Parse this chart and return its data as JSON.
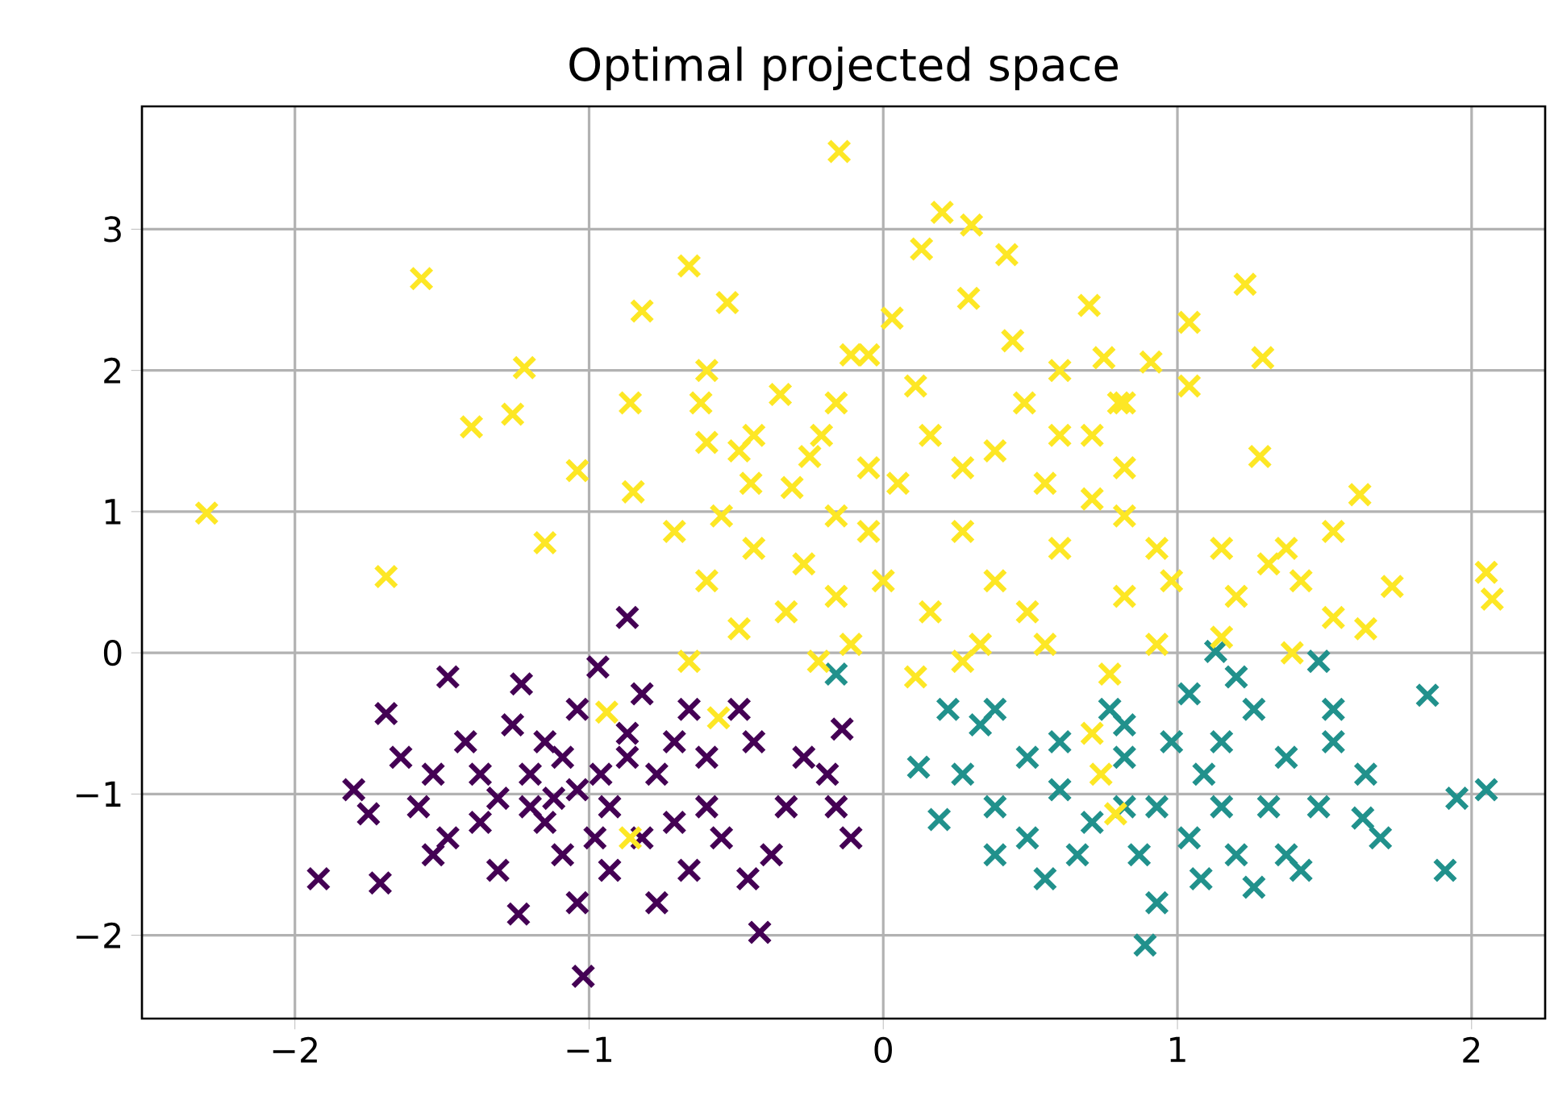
{
  "chart_data": {
    "type": "scatter",
    "title": "Optimal projected space",
    "marker": "cross",
    "grid": true,
    "xlim": [
      -2.52,
      2.25
    ],
    "ylim": [
      -2.59,
      3.87
    ],
    "xticks": [
      {
        "value": -2,
        "label": "−2"
      },
      {
        "value": -1,
        "label": "−1"
      },
      0,
      1,
      2
    ],
    "yticks": [
      {
        "value": -2,
        "label": "−2"
      },
      {
        "value": -1,
        "label": "−1"
      },
      0,
      1,
      2,
      3
    ],
    "series": [
      {
        "color": "#440154",
        "x": [
          -1.02,
          -0.42,
          -1.92,
          -1.71,
          -1.69,
          -0.87,
          -1.48,
          -1.23,
          -0.97,
          -0.11,
          -0.14,
          -1.24,
          -0.46,
          -1.48,
          -1.8,
          -1.37,
          -1.2,
          -1.09,
          -0.93,
          -0.77,
          -0.6,
          -0.44,
          -0.27,
          -0.33,
          -0.55,
          -0.71,
          -0.93,
          -1.09,
          -1.31,
          -1.58,
          -1.64,
          -1.42,
          -1.26,
          -1.04,
          -0.82,
          -0.66,
          -0.49,
          -1.2,
          -1.04,
          -0.87,
          -1.37,
          -1.15,
          -0.98,
          -0.82,
          -0.66,
          -0.77,
          -1.04,
          -1.53,
          -1.75,
          -1.31,
          -1.12,
          -0.96,
          -0.71,
          -0.19,
          -0.16,
          -0.38,
          -0.6,
          -1.53,
          -1.15,
          -0.87
        ],
        "values": [
          -2.29,
          -1.98,
          -1.6,
          -1.63,
          -0.43,
          0.25,
          -0.17,
          -0.22,
          -0.1,
          -1.31,
          -0.54,
          -1.85,
          -1.6,
          -1.31,
          -0.97,
          -0.86,
          -1.09,
          -0.74,
          -1.09,
          -0.86,
          -0.74,
          -0.63,
          -0.74,
          -1.09,
          -1.31,
          -1.2,
          -1.54,
          -1.43,
          -1.54,
          -1.09,
          -0.74,
          -0.63,
          -0.51,
          -0.4,
          -0.29,
          -0.4,
          -0.4,
          -0.86,
          -0.97,
          -0.74,
          -1.2,
          -1.2,
          -1.31,
          -1.31,
          -1.54,
          -1.77,
          -1.77,
          -1.43,
          -1.14,
          -1.03,
          -1.03,
          -0.86,
          -0.63,
          -0.86,
          -1.09,
          -1.43,
          -1.09,
          -0.86,
          -0.63,
          -0.57
        ]
      },
      {
        "color": "#21918c",
        "x": [
          0.89,
          -0.16,
          0.12,
          0.19,
          1.85,
          1.91,
          2.05,
          1.95,
          1.63,
          1.64,
          1.13,
          1.48,
          1.08,
          0.38,
          0.33,
          0.27,
          0.38,
          0.49,
          0.55,
          0.6,
          0.77,
          0.82,
          0.93,
          1.04,
          1.15,
          1.26,
          1.37,
          1.48,
          1.37,
          1.2,
          0.87,
          0.71,
          0.6,
          0.49,
          1.09,
          0.98,
          1.04,
          1.2,
          1.31,
          1.53,
          1.69,
          0.82,
          0.66,
          0.38,
          0.22,
          1.15,
          1.26,
          1.42,
          1.53,
          0.82,
          0.93
        ],
        "values": [
          -2.07,
          -0.15,
          -0.81,
          -1.18,
          -0.3,
          -1.54,
          -0.97,
          -1.03,
          -1.17,
          -0.86,
          0.01,
          -0.06,
          -1.6,
          -0.4,
          -0.51,
          -0.86,
          -1.09,
          -1.31,
          -1.6,
          -0.63,
          -0.4,
          -0.74,
          -1.09,
          -1.31,
          -0.63,
          -0.4,
          -0.74,
          -1.09,
          -1.43,
          -1.43,
          -1.43,
          -1.2,
          -0.97,
          -0.74,
          -0.86,
          -0.63,
          -0.29,
          -0.17,
          -1.09,
          -0.63,
          -1.31,
          -1.09,
          -1.43,
          -1.43,
          -0.4,
          -1.09,
          -1.66,
          -1.54,
          -0.4,
          -0.51,
          -1.77
        ]
      },
      {
        "color": "#fde725",
        "x": [
          -0.15,
          -1.57,
          -2.3,
          -1.69,
          -1.4,
          -1.22,
          -1.26,
          -1.15,
          -0.82,
          -0.66,
          -0.53,
          -0.86,
          -1.04,
          -0.85,
          -0.71,
          -0.62,
          -0.6,
          -0.49,
          -0.44,
          -0.35,
          -0.31,
          -0.45,
          -0.25,
          -0.21,
          -0.11,
          0.03,
          0.13,
          0.2,
          0.3,
          0.29,
          0.42,
          0.44,
          0.48,
          0.7,
          0.75,
          0.8,
          0.91,
          1.04,
          1.23,
          1.29,
          1.28,
          1.04,
          0.71,
          0.82,
          0.6,
          0.93,
          1.15,
          1.31,
          1.37,
          1.53,
          1.62,
          1.73,
          1.53,
          1.64,
          2.05,
          2.07,
          1.39,
          1.15,
          0.93,
          0.77,
          0.71,
          0.74,
          0.79,
          -0.94,
          -0.86,
          -0.56,
          -0.66,
          -0.49,
          -0.33,
          -0.16,
          0.0,
          0.16,
          0.33,
          0.49,
          0.11,
          0.27,
          0.38,
          0.27,
          0.05,
          -0.05,
          -0.16,
          -0.27,
          -0.44,
          -0.6,
          -0.55,
          -0.05,
          0.16,
          0.27,
          0.38,
          0.55,
          0.6,
          0.71,
          0.82,
          0.98,
          1.2,
          0.82,
          0.55,
          -0.11,
          -0.22,
          0.11,
          -0.16,
          0.82,
          0.6,
          -0.6,
          -0.05,
          1.42
        ],
        "values": [
          3.55,
          2.65,
          0.99,
          0.54,
          1.6,
          2.02,
          1.69,
          0.78,
          2.42,
          2.74,
          2.48,
          1.77,
          1.29,
          1.14,
          0.86,
          1.77,
          1.49,
          1.43,
          1.54,
          1.83,
          1.17,
          1.2,
          1.39,
          1.54,
          2.11,
          2.37,
          2.86,
          3.12,
          3.03,
          2.51,
          2.82,
          2.21,
          1.77,
          2.46,
          2.09,
          1.77,
          2.06,
          2.34,
          2.61,
          2.09,
          1.39,
          1.89,
          1.09,
          0.97,
          0.74,
          0.74,
          0.74,
          0.63,
          0.74,
          0.86,
          1.12,
          0.47,
          0.25,
          0.17,
          0.57,
          0.38,
          0.0,
          0.11,
          0.06,
          -0.15,
          -0.57,
          -0.86,
          -1.14,
          -0.42,
          -1.31,
          -0.46,
          -0.06,
          0.17,
          0.29,
          0.4,
          0.51,
          0.29,
          0.06,
          0.29,
          -0.17,
          -0.06,
          0.51,
          0.86,
          1.2,
          0.86,
          0.97,
          0.63,
          0.74,
          0.51,
          0.97,
          1.31,
          1.54,
          1.31,
          1.43,
          1.2,
          1.54,
          1.54,
          1.31,
          0.51,
          0.4,
          0.4,
          0.06,
          0.06,
          -0.06,
          1.89,
          1.77,
          1.77,
          2.0,
          2.0,
          2.11,
          0.51
        ]
      }
    ]
  }
}
